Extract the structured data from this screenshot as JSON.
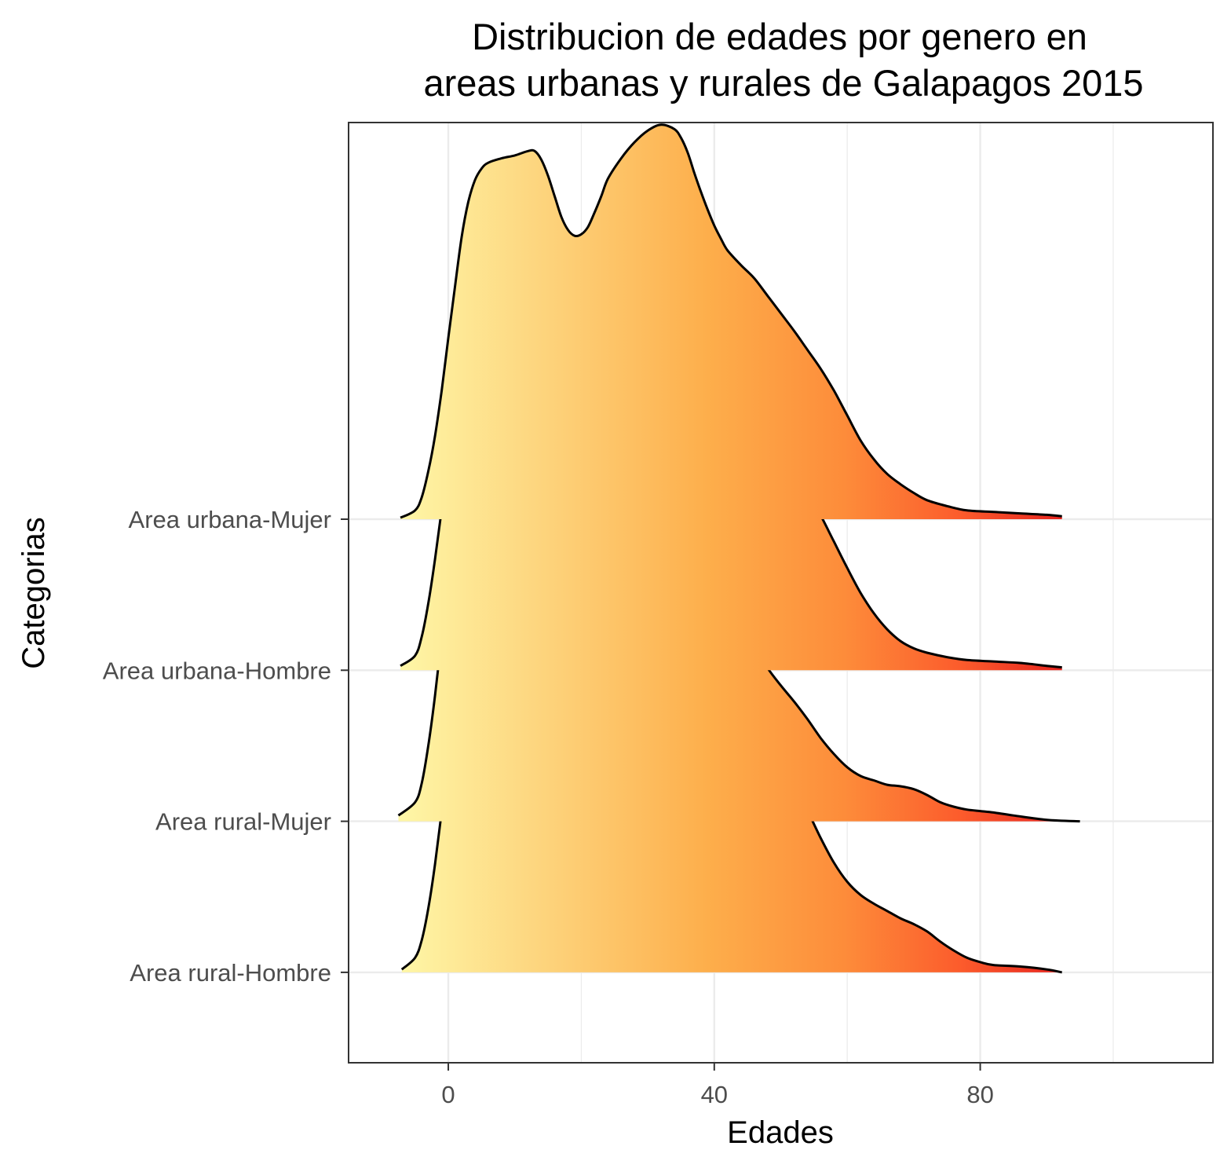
{
  "chart_data": {
    "type": "ridgeline",
    "title_lines": [
      "Distribucion de edades por genero en",
      "areas urbanas y rurales de Galapagos 2015"
    ],
    "xlabel": "Edades",
    "ylabel": "Categorias",
    "xlim": [
      -15,
      115
    ],
    "x_ticks": [
      0,
      40,
      80
    ],
    "grid": true,
    "fill": "horizontal gradient along Edades from light yellow to red",
    "colors": {
      "gradient_start": "#fef6a6",
      "gradient_mid1": "#fdd57e",
      "gradient_mid2": "#fdae4b",
      "gradient_mid3": "#fd8c3a",
      "gradient_mid4": "#fc5c2c",
      "gradient_end": "#e31a1c",
      "line": "#000000",
      "grid": "#ebebeb",
      "panel_border": "#333333"
    },
    "categories": [
      "Area urbana-Mujer",
      "Area urbana-Hombre",
      "Area rural-Mujer",
      "Area rural-Hombre"
    ],
    "series": [
      {
        "category": "Area urbana-Mujer",
        "points": [
          [
            -7.2,
            0.01
          ],
          [
            -5,
            0.06
          ],
          [
            -4,
            0.15
          ],
          [
            -3,
            0.33
          ],
          [
            -2,
            0.57
          ],
          [
            -1,
            0.88
          ],
          [
            0,
            1.24
          ],
          [
            1,
            1.59
          ],
          [
            2,
            1.93
          ],
          [
            3,
            2.17
          ],
          [
            4,
            2.32
          ],
          [
            5,
            2.4
          ],
          [
            6,
            2.44
          ],
          [
            8,
            2.47
          ],
          [
            10,
            2.49
          ],
          [
            12,
            2.52
          ],
          [
            13,
            2.52
          ],
          [
            14,
            2.46
          ],
          [
            15,
            2.35
          ],
          [
            16,
            2.21
          ],
          [
            17,
            2.07
          ],
          [
            18,
            1.98
          ],
          [
            19,
            1.94
          ],
          [
            20,
            1.95
          ],
          [
            21,
            2.0
          ],
          [
            22,
            2.1
          ],
          [
            23,
            2.21
          ],
          [
            24,
            2.33
          ],
          [
            26,
            2.47
          ],
          [
            28,
            2.58
          ],
          [
            30,
            2.66
          ],
          [
            32,
            2.7
          ],
          [
            34,
            2.67
          ],
          [
            35,
            2.61
          ],
          [
            36,
            2.51
          ],
          [
            37,
            2.37
          ],
          [
            38,
            2.24
          ],
          [
            39,
            2.12
          ],
          [
            40,
            2.01
          ],
          [
            41,
            1.92
          ],
          [
            42,
            1.84
          ],
          [
            44,
            1.74
          ],
          [
            46,
            1.65
          ],
          [
            48,
            1.53
          ],
          [
            50,
            1.41
          ],
          [
            52,
            1.29
          ],
          [
            54,
            1.16
          ],
          [
            56,
            1.03
          ],
          [
            58,
            0.88
          ],
          [
            60,
            0.71
          ],
          [
            62,
            0.54
          ],
          [
            64,
            0.41
          ],
          [
            66,
            0.31
          ],
          [
            68,
            0.24
          ],
          [
            70,
            0.18
          ],
          [
            72,
            0.13
          ],
          [
            75,
            0.09
          ],
          [
            78,
            0.06
          ],
          [
            82,
            0.05
          ],
          [
            86,
            0.04
          ],
          [
            90,
            0.03
          ],
          [
            92.3,
            0.02
          ]
        ]
      },
      {
        "category": "Area urbana-Hombre",
        "points": [
          [
            -7.2,
            0.03
          ],
          [
            -5,
            0.1
          ],
          [
            -4,
            0.23
          ],
          [
            -3,
            0.46
          ],
          [
            -2,
            0.76
          ],
          [
            -1,
            1.1
          ],
          [
            0,
            1.43
          ],
          [
            1,
            1.75
          ],
          [
            2,
            2.02
          ],
          [
            3,
            2.2
          ],
          [
            4,
            2.31
          ],
          [
            6,
            2.41
          ],
          [
            8,
            2.46
          ],
          [
            10,
            2.5
          ],
          [
            12,
            2.48
          ],
          [
            14,
            2.36
          ],
          [
            15,
            2.24
          ],
          [
            16,
            2.1
          ],
          [
            17,
            1.96
          ],
          [
            18,
            1.84
          ],
          [
            19,
            1.78
          ],
          [
            20,
            1.76
          ],
          [
            21,
            1.78
          ],
          [
            22,
            1.84
          ],
          [
            23,
            1.94
          ],
          [
            24,
            2.05
          ],
          [
            26,
            2.24
          ],
          [
            28,
            2.38
          ],
          [
            30,
            2.46
          ],
          [
            32,
            2.48
          ],
          [
            34,
            2.43
          ],
          [
            36,
            2.33
          ],
          [
            38,
            2.2
          ],
          [
            40,
            2.06
          ],
          [
            42,
            1.91
          ],
          [
            44,
            1.78
          ],
          [
            46,
            1.67
          ],
          [
            48,
            1.57
          ],
          [
            50,
            1.47
          ],
          [
            52,
            1.36
          ],
          [
            54,
            1.22
          ],
          [
            56,
            1.06
          ],
          [
            58,
            0.88
          ],
          [
            60,
            0.7
          ],
          [
            62,
            0.53
          ],
          [
            64,
            0.39
          ],
          [
            66,
            0.28
          ],
          [
            68,
            0.2
          ],
          [
            70,
            0.15
          ],
          [
            72,
            0.12
          ],
          [
            75,
            0.09
          ],
          [
            78,
            0.07
          ],
          [
            82,
            0.06
          ],
          [
            86,
            0.05
          ],
          [
            90,
            0.03
          ],
          [
            92.3,
            0.02
          ]
        ]
      },
      {
        "category": "Area rural-Mujer",
        "points": [
          [
            -7.5,
            0.04
          ],
          [
            -5,
            0.13
          ],
          [
            -4,
            0.26
          ],
          [
            -3,
            0.52
          ],
          [
            -2,
            0.86
          ],
          [
            -1,
            1.26
          ],
          [
            0,
            1.67
          ],
          [
            1,
            2.05
          ],
          [
            2,
            2.35
          ],
          [
            3,
            2.58
          ],
          [
            4,
            2.73
          ],
          [
            5,
            2.83
          ],
          [
            6,
            2.88
          ],
          [
            7,
            2.9
          ],
          [
            8,
            2.9
          ],
          [
            9,
            2.87
          ],
          [
            10,
            2.81
          ],
          [
            11,
            2.7
          ],
          [
            12,
            2.55
          ],
          [
            13,
            2.36
          ],
          [
            14,
            2.16
          ],
          [
            15,
            1.95
          ],
          [
            16,
            1.75
          ],
          [
            17,
            1.58
          ],
          [
            18,
            1.45
          ],
          [
            19,
            1.37
          ],
          [
            20,
            1.34
          ],
          [
            21,
            1.35
          ],
          [
            22,
            1.4
          ],
          [
            23,
            1.48
          ],
          [
            24,
            1.58
          ],
          [
            26,
            1.78
          ],
          [
            28,
            1.96
          ],
          [
            30,
            2.08
          ],
          [
            32,
            2.14
          ],
          [
            34,
            2.14
          ],
          [
            36,
            2.06
          ],
          [
            38,
            1.91
          ],
          [
            40,
            1.72
          ],
          [
            42,
            1.53
          ],
          [
            44,
            1.36
          ],
          [
            46,
            1.2
          ],
          [
            48,
            1.05
          ],
          [
            50,
            0.93
          ],
          [
            52,
            0.82
          ],
          [
            54,
            0.7
          ],
          [
            56,
            0.57
          ],
          [
            58,
            0.46
          ],
          [
            60,
            0.37
          ],
          [
            62,
            0.31
          ],
          [
            64,
            0.28
          ],
          [
            66,
            0.25
          ],
          [
            68,
            0.24
          ],
          [
            70,
            0.22
          ],
          [
            72,
            0.18
          ],
          [
            74,
            0.13
          ],
          [
            76,
            0.1
          ],
          [
            78,
            0.08
          ],
          [
            80,
            0.07
          ],
          [
            82,
            0.06
          ],
          [
            85,
            0.04
          ],
          [
            90,
            0.01
          ],
          [
            95,
            0.0
          ]
        ]
      },
      {
        "category": "Area rural-Hombre",
        "points": [
          [
            -7,
            0.02
          ],
          [
            -5,
            0.1
          ],
          [
            -4,
            0.22
          ],
          [
            -3,
            0.44
          ],
          [
            -2,
            0.74
          ],
          [
            -1,
            1.1
          ],
          [
            0,
            1.47
          ],
          [
            1,
            1.82
          ],
          [
            2,
            2.1
          ],
          [
            3,
            2.3
          ],
          [
            4,
            2.42
          ],
          [
            5,
            2.49
          ],
          [
            6,
            2.52
          ],
          [
            8,
            2.52
          ],
          [
            10,
            2.49
          ],
          [
            12,
            2.44
          ],
          [
            13,
            2.39
          ],
          [
            14,
            2.3
          ],
          [
            15,
            2.19
          ],
          [
            16,
            2.07
          ],
          [
            18,
            1.91
          ],
          [
            20,
            1.84
          ],
          [
            22,
            1.81
          ],
          [
            23,
            1.8
          ],
          [
            24,
            1.82
          ],
          [
            26,
            1.93
          ],
          [
            28,
            2.09
          ],
          [
            30,
            2.23
          ],
          [
            32,
            2.29
          ],
          [
            34,
            2.28
          ],
          [
            36,
            2.18
          ],
          [
            38,
            2.06
          ],
          [
            40,
            2.0
          ],
          [
            42,
            1.96
          ],
          [
            44,
            1.9
          ],
          [
            46,
            1.79
          ],
          [
            48,
            1.64
          ],
          [
            50,
            1.47
          ],
          [
            52,
            1.29
          ],
          [
            54,
            1.11
          ],
          [
            56,
            0.92
          ],
          [
            58,
            0.75
          ],
          [
            60,
            0.62
          ],
          [
            62,
            0.53
          ],
          [
            64,
            0.47
          ],
          [
            66,
            0.42
          ],
          [
            68,
            0.37
          ],
          [
            70,
            0.33
          ],
          [
            72,
            0.28
          ],
          [
            74,
            0.21
          ],
          [
            76,
            0.15
          ],
          [
            78,
            0.1
          ],
          [
            80,
            0.07
          ],
          [
            82,
            0.05
          ],
          [
            86,
            0.04
          ],
          [
            90,
            0.02
          ],
          [
            92.3,
            0.0
          ]
        ]
      }
    ]
  }
}
